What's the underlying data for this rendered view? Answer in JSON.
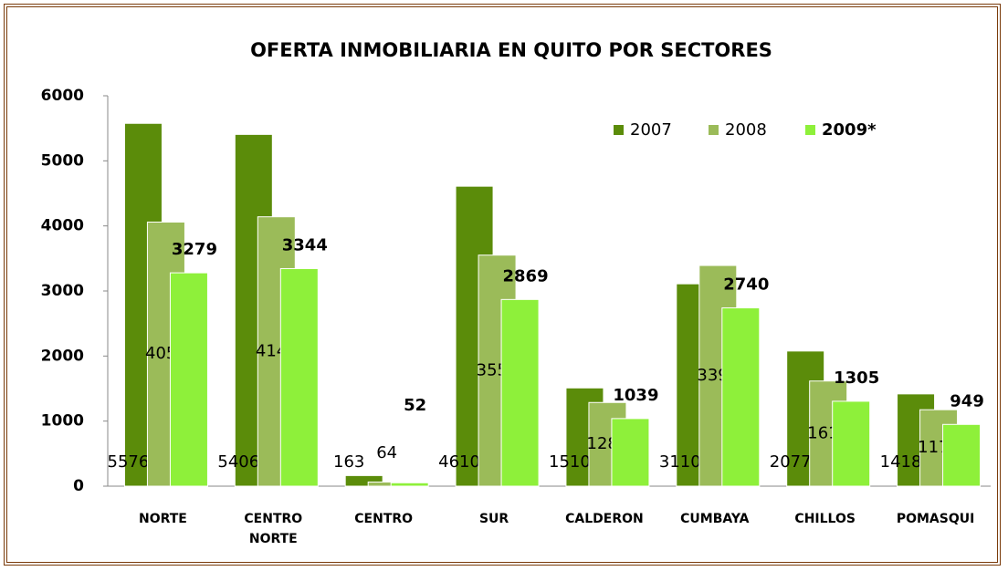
{
  "chart_data": {
    "type": "bar",
    "title": "OFERTA  INMOBILIARIA EN QUITO POR SECTORES",
    "categories": [
      "NORTE",
      "CENTRO NORTE",
      "CENTRO",
      "SUR",
      "CALDERON",
      "CUMBAYA",
      "CHILLOS",
      "POMASQUI"
    ],
    "series": [
      {
        "name": "2007",
        "color": "#5b8c0a",
        "values": [
          5576,
          5406,
          163,
          4610,
          1510,
          3110,
          2077,
          1418
        ]
      },
      {
        "name": "2008",
        "color": "#9bbb59",
        "values": [
          4059,
          4140,
          64,
          3551,
          1286,
          3392,
          1616,
          1175
        ]
      },
      {
        "name": "2009*",
        "color": "#8ef03a",
        "values": [
          3279,
          3344,
          52,
          2869,
          1039,
          2740,
          1305,
          949
        ]
      }
    ],
    "ylim": [
      0,
      6000
    ],
    "yticks": [
      0,
      1000,
      2000,
      3000,
      4000,
      5000,
      6000
    ],
    "grid": false,
    "legend": "top-right"
  }
}
